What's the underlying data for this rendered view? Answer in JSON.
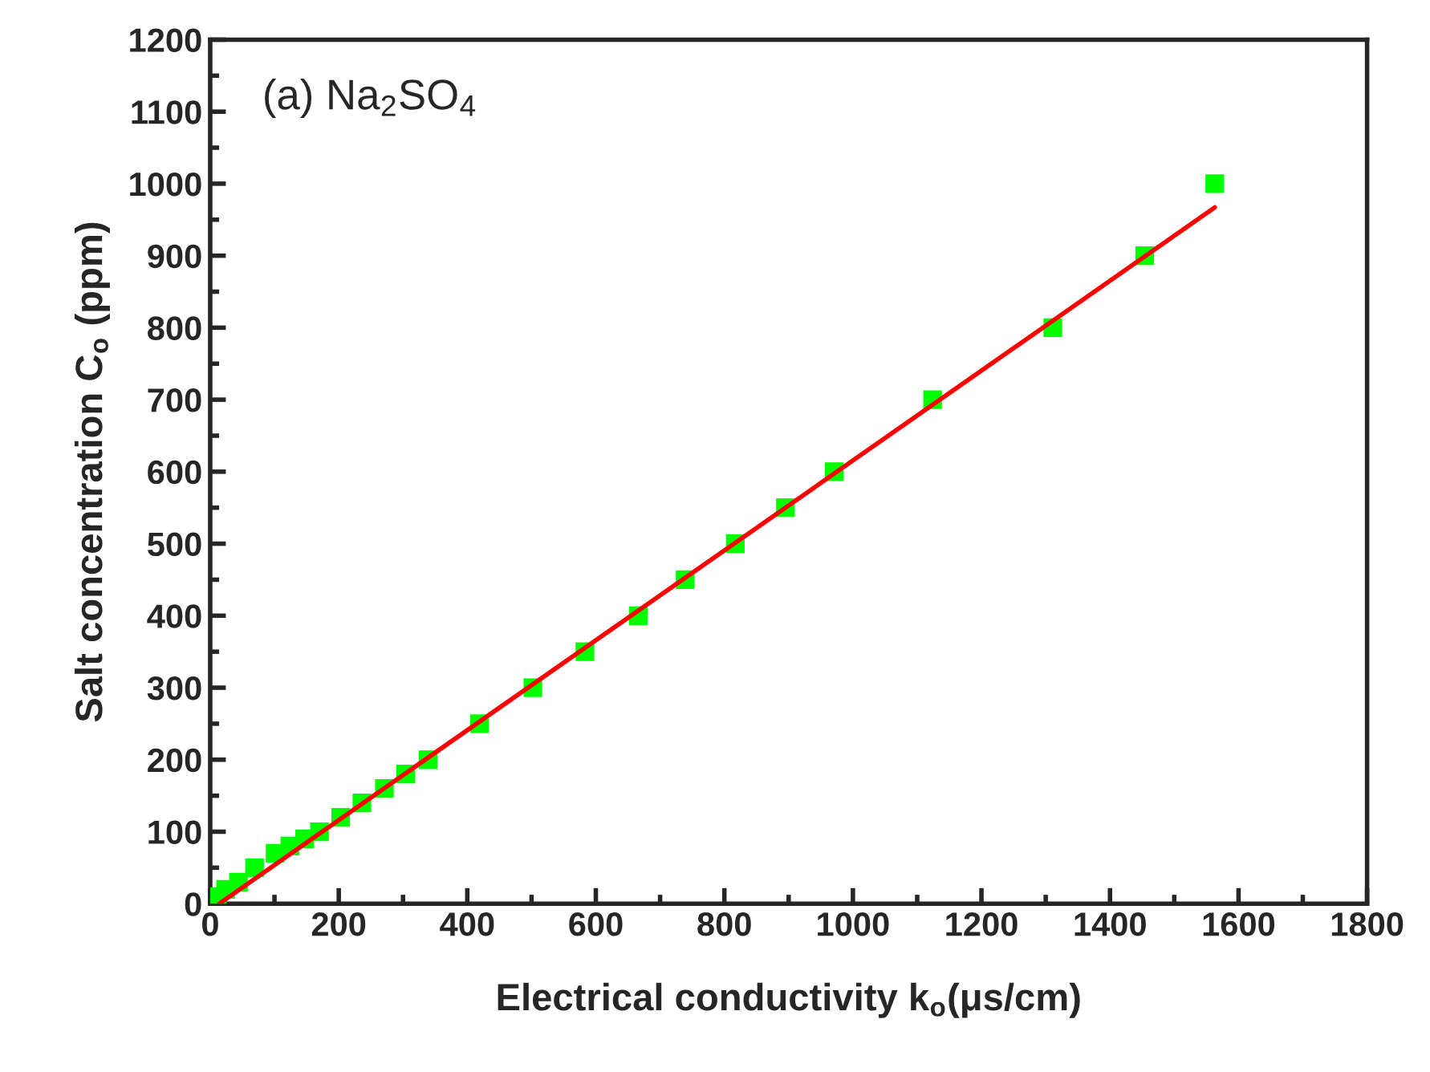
{
  "chart_data": {
    "type": "scatter",
    "xlabel": "Electrical conductivity k$_{o}$(μs/cm)",
    "ylabel": "Salt concentration C$_{o}$ (ppm)",
    "annotations": [
      "(a) Na$_{2}$SO$_{4}$"
    ],
    "series": [
      {
        "color": "#00ff00",
        "marker": "square",
        "x": [
          11,
          24,
          44,
          69,
          101,
          124,
          147,
          170,
          203,
          236,
          271,
          304,
          339,
          419,
          502,
          583,
          666,
          739,
          817,
          895,
          971,
          1124,
          1311,
          1454,
          1563
        ],
        "values": [
          10,
          20,
          30,
          50,
          70,
          80,
          90,
          100,
          120,
          140,
          160,
          180,
          200,
          250,
          300,
          350,
          400,
          450,
          500,
          550,
          600,
          700,
          800,
          900,
          1000
        ]
      },
      {
        "type": "line",
        "color": "#ff0000",
        "marker": "none",
        "line_style": "solid",
        "x": [
          14,
          1563
        ],
        "values": [
          0,
          967
        ]
      }
    ],
    "xlim": [
      0,
      1800
    ],
    "ylim": [
      0,
      1200
    ],
    "xticks": [
      0,
      200,
      400,
      600,
      800,
      1000,
      1200,
      1400,
      1600,
      1800
    ],
    "yticks": [
      0,
      100,
      200,
      300,
      400,
      500,
      600,
      700,
      800,
      900,
      1000,
      1100,
      1200
    ],
    "grid": false,
    "legend": false
  }
}
